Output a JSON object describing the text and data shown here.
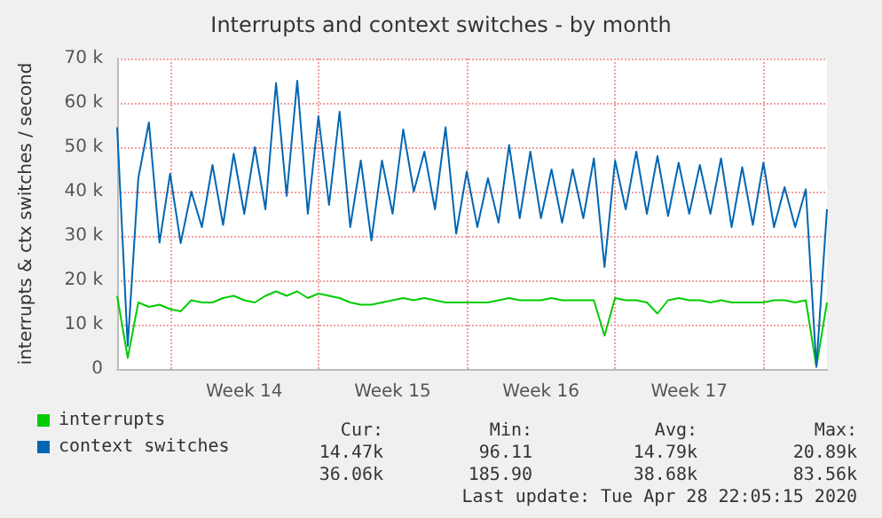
{
  "chart_data": {
    "type": "line",
    "title": "Interrupts and context switches - by month",
    "ylabel": "interrupts & ctx switches / second",
    "categories": [
      null,
      null,
      null,
      null,
      null,
      null,
      null,
      null,
      null,
      null,
      null,
      null,
      "Week 14",
      null,
      null,
      null,
      null,
      null,
      null,
      null,
      null,
      null,
      null,
      null,
      null,
      null,
      "Week 15",
      null,
      null,
      null,
      null,
      null,
      null,
      null,
      null,
      null,
      null,
      null,
      null,
      null,
      "Week 16",
      null,
      null,
      null,
      null,
      null,
      null,
      null,
      null,
      null,
      null,
      null,
      null,
      null,
      "Week 17",
      null,
      null,
      null,
      null,
      null,
      null,
      null,
      null,
      null,
      null,
      null,
      null,
      null
    ],
    "ylim": [
      0,
      70000
    ],
    "yticks": [
      0,
      {
        "value": 10000,
        "label": "10 k"
      },
      {
        "value": 20000,
        "label": "20 k"
      },
      {
        "value": 30000,
        "label": "30 k"
      },
      {
        "value": 40000,
        "label": "40 k"
      },
      {
        "value": 50000,
        "label": "50 k"
      },
      {
        "value": 60000,
        "label": "60 k"
      },
      {
        "value": 70000,
        "label": "70 k"
      }
    ],
    "grid": true,
    "legend": "bottom",
    "marker": "none",
    "line_style": "solid",
    "series": [
      {
        "name": "interrupts",
        "color": "#00cc00",
        "values": [
          16500,
          2500,
          15000,
          14000,
          14500,
          13500,
          13000,
          15500,
          15000,
          15000,
          16000,
          16500,
          15500,
          15000,
          16500,
          17500,
          16500,
          17500,
          16000,
          17000,
          16500,
          16000,
          15000,
          14500,
          14500,
          15000,
          15500,
          16000,
          15500,
          16000,
          15500,
          15000,
          15000,
          15000,
          15000,
          15000,
          15500,
          16000,
          15500,
          15500,
          15500,
          16000,
          15500,
          15500,
          15500,
          15500,
          7500,
          16000,
          15500,
          15500,
          15000,
          12500,
          15500,
          16000,
          15500,
          15500,
          15000,
          15500,
          15000,
          15000,
          15000,
          15000,
          15500,
          15500,
          15000,
          15500,
          500,
          15000
        ]
      },
      {
        "name": "context switches",
        "color": "#0066b3",
        "values": [
          54500,
          5200,
          43000,
          55600,
          28500,
          44000,
          28400,
          40000,
          32000,
          46000,
          32500,
          48500,
          35000,
          50000,
          36000,
          64500,
          39000,
          65000,
          35000,
          57000,
          37000,
          58000,
          32000,
          47000,
          29000,
          47000,
          35000,
          54000,
          40000,
          49000,
          36000,
          54500,
          30500,
          44500,
          32000,
          43000,
          33000,
          50500,
          34000,
          49000,
          34000,
          45000,
          33000,
          45000,
          34000,
          47500,
          23000,
          47000,
          36000,
          49000,
          35000,
          48000,
          34500,
          46500,
          35000,
          46000,
          35000,
          47500,
          32000,
          45500,
          32500,
          46500,
          32000,
          41000,
          32000,
          40500,
          500,
          36000
        ]
      }
    ],
    "annotations": [
      "Cur:",
      "Min:",
      "Avg:",
      "Max:",
      "14.47k",
      "96.11",
      "14.79k",
      "20.89k",
      "36.06k",
      "185.90",
      "38.68k",
      "83.56k",
      "Last update: Tue Apr 28 22:05:15 2020"
    ]
  }
}
